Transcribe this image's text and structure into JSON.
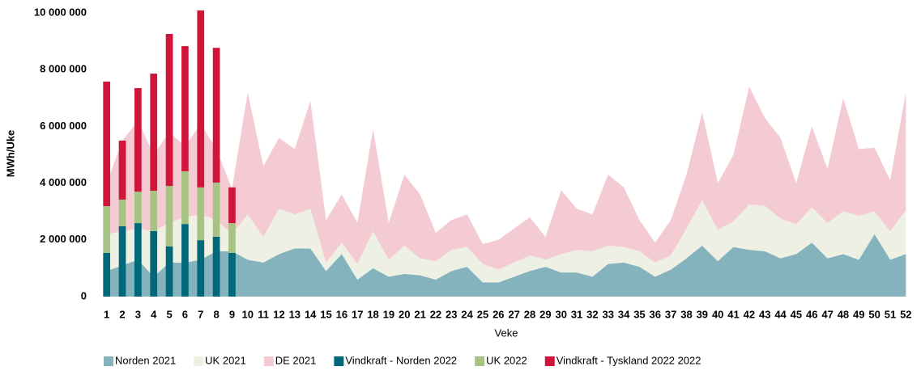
{
  "chart_data": {
    "type": "combo",
    "y_label": "MWh/Uke",
    "x_label": "Veke",
    "categories": [
      "1",
      "2",
      "3",
      "4",
      "5",
      "6",
      "7",
      "8",
      "9",
      "10",
      "11",
      "12",
      "13",
      "14",
      "15",
      "16",
      "17",
      "18",
      "19",
      "20",
      "21",
      "22",
      "23",
      "24",
      "25",
      "26",
      "27",
      "28",
      "29",
      "30",
      "31",
      "32",
      "33",
      "34",
      "35",
      "36",
      "37",
      "38",
      "39",
      "40",
      "41",
      "42",
      "43",
      "44",
      "45",
      "46",
      "47",
      "48",
      "49",
      "50",
      "51",
      "52"
    ],
    "ylim": [
      0,
      10000000
    ],
    "yticks": [
      0,
      {
        "value": 2000000,
        "label": "2 000 000"
      },
      {
        "value": 4000000,
        "label": "4 000 000"
      },
      {
        "value": 6000000,
        "label": "6 000 000"
      },
      {
        "value": 8000000,
        "label": "8 000 000"
      },
      {
        "value": 10000000,
        "label": "10 000 000"
      }
    ],
    "grid": false,
    "legend": "bottom",
    "series": [
      {
        "name": "Norden 2021",
        "type": "area",
        "color": "#84b3bd",
        "values": [
          900000,
          1100000,
          1300000,
          700000,
          1200000,
          1200000,
          1300000,
          1600000,
          1600000,
          1300000,
          1200000,
          1500000,
          1700000,
          1700000,
          900000,
          1500000,
          600000,
          1000000,
          700000,
          800000,
          750000,
          600000,
          900000,
          1050000,
          500000,
          500000,
          700000,
          900000,
          1050000,
          850000,
          850000,
          700000,
          1150000,
          1200000,
          1050000,
          700000,
          950000,
          1350000,
          1800000,
          1250000,
          1750000,
          1650000,
          1600000,
          1350000,
          1500000,
          1900000,
          1350000,
          1500000,
          1300000,
          2200000,
          1300000,
          1500000
        ]
      },
      {
        "name": "UK 2021",
        "type": "area",
        "color": "#eef0e4",
        "values": [
          1300000,
          1200000,
          1100000,
          1600000,
          1400000,
          1600000,
          1600000,
          1100000,
          600000,
          1600000,
          900000,
          1600000,
          1200000,
          1400000,
          300000,
          400000,
          550000,
          1300000,
          600000,
          1000000,
          600000,
          650000,
          750000,
          700000,
          650000,
          450000,
          500000,
          550000,
          250000,
          650000,
          800000,
          900000,
          650000,
          550000,
          550000,
          500000,
          500000,
          1050000,
          1600000,
          1100000,
          900000,
          1600000,
          1600000,
          1400000,
          1050000,
          1250000,
          1250000,
          1500000,
          1550000,
          800000,
          1000000,
          1550000
        ]
      },
      {
        "name": "DE 2021",
        "type": "area",
        "color": "#f4cbd3",
        "values": [
          1800000,
          3200000,
          3800000,
          2700000,
          3200000,
          2500000,
          3200000,
          2500000,
          1600000,
          4300000,
          2500000,
          2500000,
          2300000,
          3800000,
          1500000,
          1700000,
          1450000,
          3600000,
          1300000,
          2500000,
          2250000,
          1000000,
          1050000,
          1150000,
          700000,
          1050000,
          1200000,
          1350000,
          800000,
          2250000,
          1450000,
          1300000,
          2500000,
          2100000,
          1100000,
          700000,
          1250000,
          1900000,
          3100000,
          1650000,
          2350000,
          4150000,
          3100000,
          2850000,
          1450000,
          2850000,
          1900000,
          4000000,
          2350000,
          2250000,
          1800000,
          4150000
        ]
      },
      {
        "name": "Vindkraft - Norden 2022",
        "type": "bar",
        "color": "#006878",
        "values": [
          1540000,
          2480000,
          2590000,
          2310000,
          1770000,
          2560000,
          1990000,
          2110000,
          1540000,
          null,
          null,
          null,
          null,
          null,
          null,
          null,
          null,
          null,
          null,
          null,
          null,
          null,
          null,
          null,
          null,
          null,
          null,
          null,
          null,
          null,
          null,
          null,
          null,
          null,
          null,
          null,
          null,
          null,
          null,
          null,
          null,
          null,
          null,
          null,
          null,
          null,
          null,
          null,
          null,
          null,
          null,
          null
        ]
      },
      {
        "name": "UK 2022",
        "type": "bar",
        "color": "#a7c383",
        "values": [
          1650000,
          940000,
          1110000,
          1420000,
          2130000,
          1860000,
          1860000,
          1910000,
          1050000,
          null,
          null,
          null,
          null,
          null,
          null,
          null,
          null,
          null,
          null,
          null,
          null,
          null,
          null,
          null,
          null,
          null,
          null,
          null,
          null,
          null,
          null,
          null,
          null,
          null,
          null,
          null,
          null,
          null,
          null,
          null,
          null,
          null,
          null,
          null,
          null,
          null,
          null,
          null,
          null,
          null,
          null,
          null
        ]
      },
      {
        "name": "Vindkraft - Tyskland 2022 2022",
        "type": "bar",
        "color": "#d0153a",
        "values": [
          4390000,
          2080000,
          3650000,
          4130000,
          5360000,
          4410000,
          6240000,
          4750000,
          1260000,
          null,
          null,
          null,
          null,
          null,
          null,
          null,
          null,
          null,
          null,
          null,
          null,
          null,
          null,
          null,
          null,
          null,
          null,
          null,
          null,
          null,
          null,
          null,
          null,
          null,
          null,
          null,
          null,
          null,
          null,
          null,
          null,
          null,
          null,
          null,
          null,
          null,
          null,
          null,
          null,
          null,
          null,
          null
        ]
      }
    ]
  }
}
